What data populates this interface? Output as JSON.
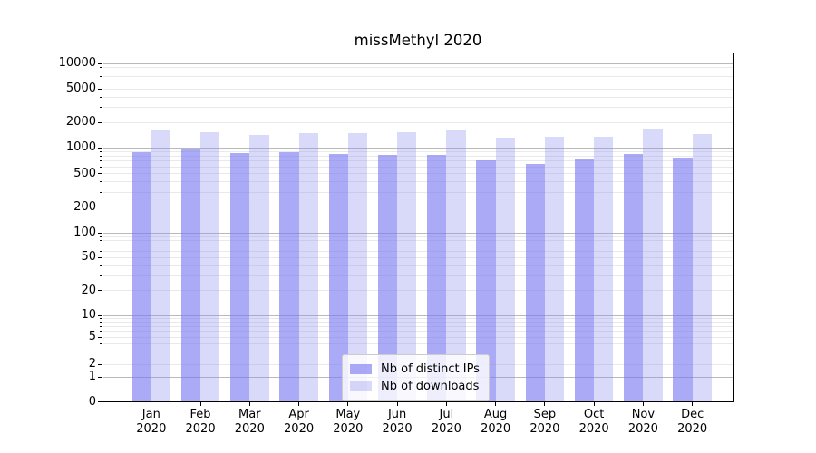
{
  "chart_data": {
    "type": "bar",
    "title": "missMethyl 2020",
    "categories": [
      "Jan",
      "Feb",
      "Mar",
      "Apr",
      "May",
      "Jun",
      "Jul",
      "Aug",
      "Sep",
      "Oct",
      "Nov",
      "Dec"
    ],
    "year_label": "2020",
    "series": [
      {
        "key": "distinct-ips",
        "name": "Nb of distinct IPs",
        "color": "#7878f0",
        "alpha": 0.63,
        "values": [
          900,
          960,
          860,
          890,
          850,
          830,
          820,
          710,
          650,
          730,
          840,
          760
        ]
      },
      {
        "key": "downloads",
        "name": "Nb of downloads",
        "color": "#8c8cf0",
        "alpha": 0.33,
        "values": [
          1650,
          1550,
          1420,
          1480,
          1480,
          1540,
          1600,
          1330,
          1370,
          1350,
          1690,
          1460
        ]
      }
    ],
    "yscale": "symlog",
    "ytick_labels": [
      0,
      1,
      2,
      5,
      10,
      20,
      50,
      100,
      200,
      500,
      1000,
      2000,
      5000,
      10000
    ],
    "ylim": [
      0,
      13000
    ],
    "grid": "both",
    "legend_position": "lower-center-inside"
  },
  "colors": {
    "major_grid": "#b9b9b9",
    "minor_grid": "#e9e9e9",
    "axis": "#000000",
    "legend_border": "#cccccc"
  }
}
